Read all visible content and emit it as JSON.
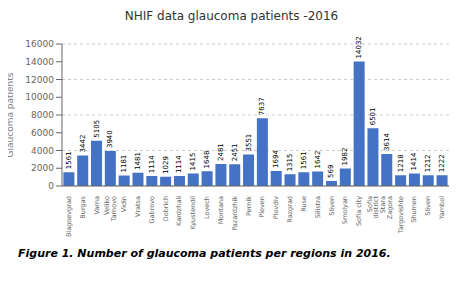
{
  "chart_data": {
    "type": "bar",
    "title": "NHIF data glaucoma patients -2016",
    "ylabel": "Glaucoma patients",
    "caption": "Figure 1. Number of glaucoma patients per regions in 2016.",
    "categories": [
      "Blagoevgrad",
      "Burgas",
      "Varna",
      "Veliko\nTarnovo",
      "Vidin",
      "Vratsa",
      "Gabrovo",
      "Dobrich",
      "Kardzhali",
      "Kyustendil",
      "Lovech",
      "Montana",
      "Pazardzhik",
      "Pernik",
      "Pleven",
      "Plovdiv",
      "Razgrad",
      "Ruse",
      "Silistra",
      "Sliven",
      "Smolyan",
      "Sofia city",
      "Sofia\ndistrict",
      "Stara\nZagora",
      "Targovishte",
      "Shumen",
      "Sliven",
      "Yambol"
    ],
    "values": [
      1561,
      3442,
      5105,
      3940,
      1181,
      1481,
      1114,
      1029,
      1114,
      1415,
      1648,
      2481,
      2451,
      3551,
      7637,
      1694,
      1315,
      1561,
      1642,
      569,
      1982,
      14032,
      6501,
      3614,
      1218,
      1414,
      1212,
      1222
    ],
    "color": "#4472c4",
    "ylim": [
      0,
      16000
    ],
    "yticks": [
      0,
      2000,
      4000,
      6000,
      8000,
      10000,
      12000,
      14000,
      16000
    ],
    "grid": true,
    "data_labels": true
  }
}
